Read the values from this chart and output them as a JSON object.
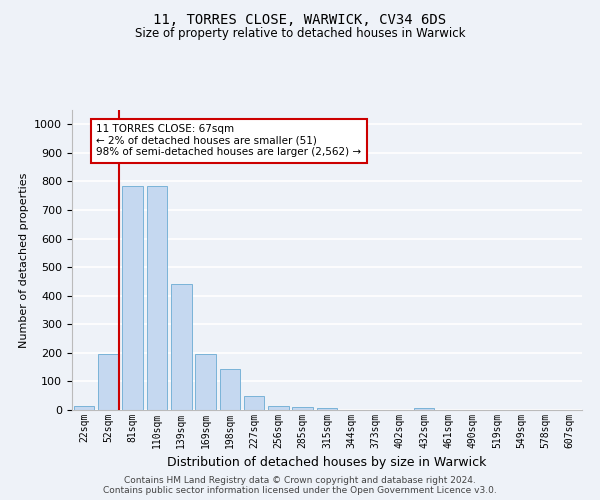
{
  "title1": "11, TORRES CLOSE, WARWICK, CV34 6DS",
  "title2": "Size of property relative to detached houses in Warwick",
  "xlabel": "Distribution of detached houses by size in Warwick",
  "ylabel": "Number of detached properties",
  "categories": [
    "22sqm",
    "52sqm",
    "81sqm",
    "110sqm",
    "139sqm",
    "169sqm",
    "198sqm",
    "227sqm",
    "256sqm",
    "285sqm",
    "315sqm",
    "344sqm",
    "373sqm",
    "402sqm",
    "432sqm",
    "461sqm",
    "490sqm",
    "519sqm",
    "549sqm",
    "578sqm",
    "607sqm"
  ],
  "values": [
    15,
    195,
    785,
    785,
    440,
    195,
    145,
    50,
    15,
    10,
    8,
    0,
    0,
    0,
    8,
    0,
    0,
    0,
    0,
    0,
    0
  ],
  "bar_color": "#c5d8f0",
  "bar_edge_color": "#7ab3d8",
  "vline_x": 1.43,
  "vline_color": "#cc0000",
  "annotation_text": "11 TORRES CLOSE: 67sqm\n← 2% of detached houses are smaller (51)\n98% of semi-detached houses are larger (2,562) →",
  "annotation_box_facecolor": "#ffffff",
  "annotation_box_edge": "#cc0000",
  "ylim": [
    0,
    1050
  ],
  "yticks": [
    0,
    100,
    200,
    300,
    400,
    500,
    600,
    700,
    800,
    900,
    1000
  ],
  "background_color": "#eef2f8",
  "grid_color": "#ffffff",
  "footer1": "Contains HM Land Registry data © Crown copyright and database right 2024.",
  "footer2": "Contains public sector information licensed under the Open Government Licence v3.0."
}
